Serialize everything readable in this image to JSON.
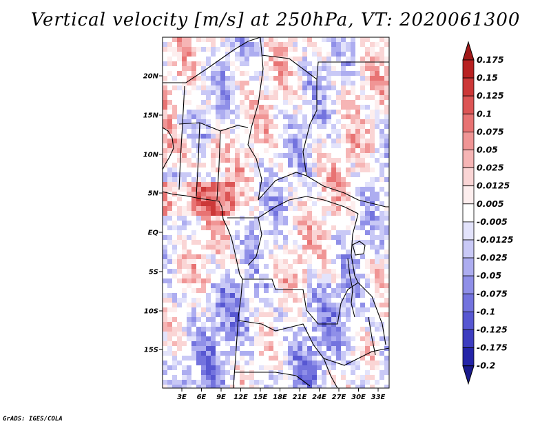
{
  "title": "Vertical velocity [m/s] at 250hPa, VT: 2020061300",
  "credit": "GrADS: IGES/COLA",
  "map": {
    "lat_labels": [
      "20N",
      "15N",
      "10N",
      "5N",
      "EQ",
      "5S",
      "10S",
      "15S"
    ],
    "lon_labels": [
      "3E",
      "6E",
      "9E",
      "12E",
      "15E",
      "18E",
      "21E",
      "24E",
      "27E",
      "30E",
      "33E"
    ]
  },
  "colorbar": {
    "labels": [
      "0.175",
      "0.15",
      "0.125",
      "0.1",
      "0.075",
      "0.05",
      "0.025",
      "0.0125",
      "0.005",
      "-0.005",
      "-0.0125",
      "-0.025",
      "-0.05",
      "-0.075",
      "-0.1",
      "-0.125",
      "-0.175",
      "-0.2"
    ],
    "colors": [
      "#a01818",
      "#b82222",
      "#cc3838",
      "#dc5555",
      "#e87373",
      "#f09595",
      "#f6b5b5",
      "#fad5d5",
      "#fdeeee",
      "#ffffff",
      "#e3e3fb",
      "#c9c9f6",
      "#adadf0",
      "#8f8fe8",
      "#7373de",
      "#5757d2",
      "#3d3dc0",
      "#2424a8",
      "#1a1a8c"
    ]
  }
}
